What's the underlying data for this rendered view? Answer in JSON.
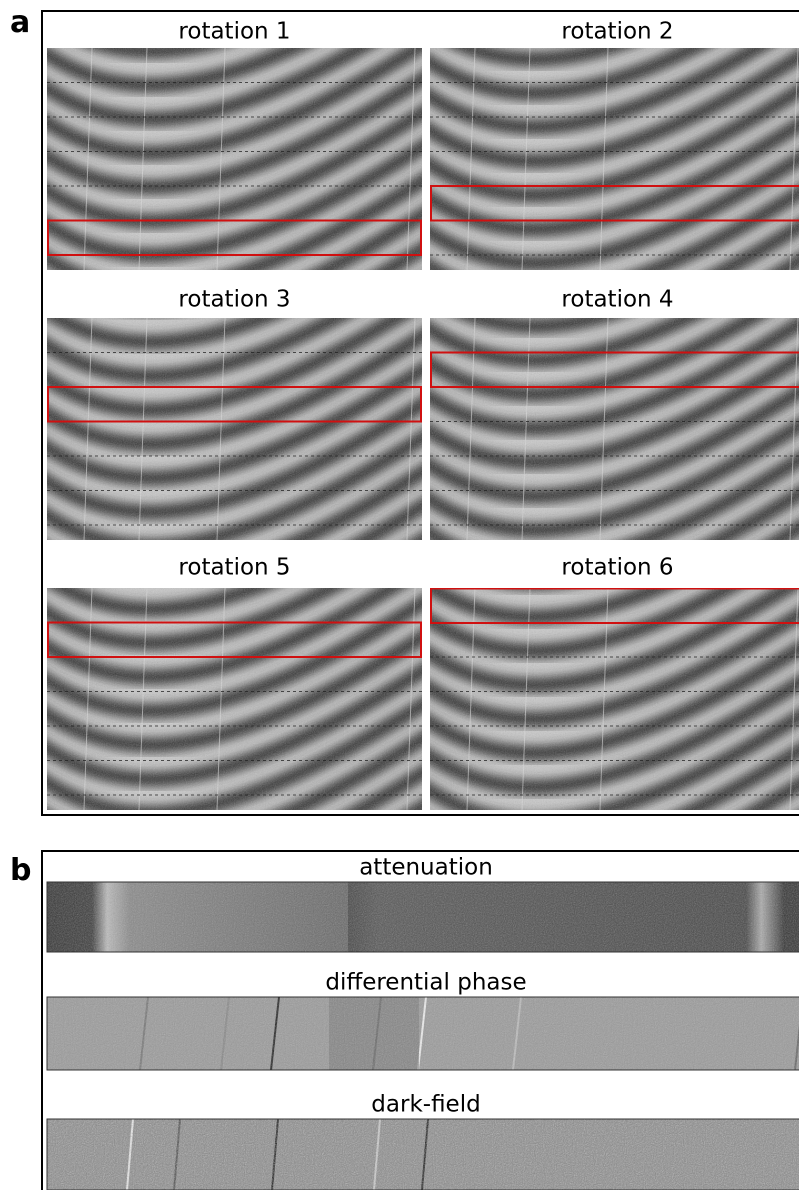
{
  "label_a": "a",
  "panels": [
    {
      "title": "rotation 1"
    },
    {
      "title": "rotation 2"
    },
    {
      "title": "rotation 3"
    },
    {
      "title": "rotation 4"
    },
    {
      "title": "rotation 5"
    },
    {
      "title": "rotation 6"
    }
  ],
  "label_b": "b",
  "rows": [
    {
      "title": "attenuation"
    },
    {
      "title": "differential phase"
    },
    {
      "title": "dark-field"
    }
  ]
}
